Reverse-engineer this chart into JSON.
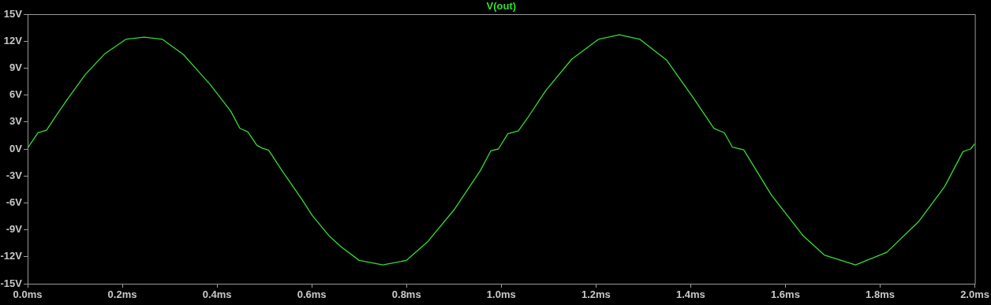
{
  "chart_data": {
    "type": "line",
    "legend": "top",
    "marker": "none",
    "line_style": "solid",
    "xlim": [
      0,
      2
    ],
    "xticks": [
      {
        "value": 0,
        "label": "0.0ms"
      },
      {
        "value": 0.2,
        "label": "0.2ms"
      },
      {
        "value": 0.4,
        "label": "0.4ms"
      },
      {
        "value": 0.6,
        "label": "0.6ms"
      },
      {
        "value": 0.8,
        "label": "0.8ms"
      },
      {
        "value": 1,
        "label": "1.0ms"
      },
      {
        "value": 1.2,
        "label": "1.2ms"
      },
      {
        "value": 1.4,
        "label": "1.4ms"
      },
      {
        "value": 1.6,
        "label": "1.6ms"
      },
      {
        "value": 1.8,
        "label": "1.8ms"
      },
      {
        "value": 2,
        "label": "2.0ms"
      }
    ],
    "ylim": [
      -15,
      15
    ],
    "yticks": [
      {
        "value": -15,
        "label": "-15V"
      },
      {
        "value": -12,
        "label": "-12V"
      },
      {
        "value": -9,
        "label": "-9V"
      },
      {
        "value": -6,
        "label": "-6V"
      },
      {
        "value": -3,
        "label": "-3V"
      },
      {
        "value": 0,
        "label": "0V"
      },
      {
        "value": 3,
        "label": "3V"
      },
      {
        "value": 6,
        "label": "6V"
      },
      {
        "value": 9,
        "label": "9V"
      },
      {
        "value": 12,
        "label": "12V"
      },
      {
        "value": 15,
        "label": "15V"
      }
    ],
    "series": [
      {
        "name": "V(out)",
        "color": "#33dd33",
        "x": [
          0,
          0.022,
          0.04,
          0.06,
          0.085,
          0.122,
          0.163,
          0.207,
          0.246,
          0.285,
          0.329,
          0.385,
          0.429,
          0.448,
          0.465,
          0.484,
          0.495,
          0.509,
          0.537,
          0.579,
          0.601,
          0.637,
          0.662,
          0.7,
          0.75,
          0.8,
          0.845,
          0.9,
          0.956,
          0.978,
          0.994,
          1.014,
          1.036,
          1.055,
          1.094,
          1.149,
          1.205,
          1.249,
          1.293,
          1.349,
          1.404,
          1.449,
          1.471,
          1.488,
          1.512,
          1.57,
          1.638,
          1.682,
          1.748,
          1.814,
          1.881,
          1.936,
          1.975,
          1.991,
          2
        ],
        "values": [
          0.1,
          1.8,
          2.1,
          3.7,
          5.6,
          8.3,
          10.6,
          12.2,
          12.45,
          12.2,
          10.5,
          7.2,
          4.2,
          2.3,
          1.9,
          0.4,
          0.1,
          -0.15,
          -2.4,
          -5.6,
          -7.4,
          -9.7,
          -10.9,
          -12.4,
          -12.9,
          -12.4,
          -10.3,
          -6.8,
          -2.4,
          -0.2,
          0,
          1.7,
          2,
          3.4,
          6.5,
          10,
          12.2,
          12.7,
          12.2,
          9.9,
          5.8,
          2.3,
          1.8,
          0.2,
          -0.1,
          -5.1,
          -9.7,
          -11.8,
          -12.9,
          -11.5,
          -8.1,
          -4.2,
          -0.3,
          0,
          0.6
        ]
      }
    ]
  }
}
